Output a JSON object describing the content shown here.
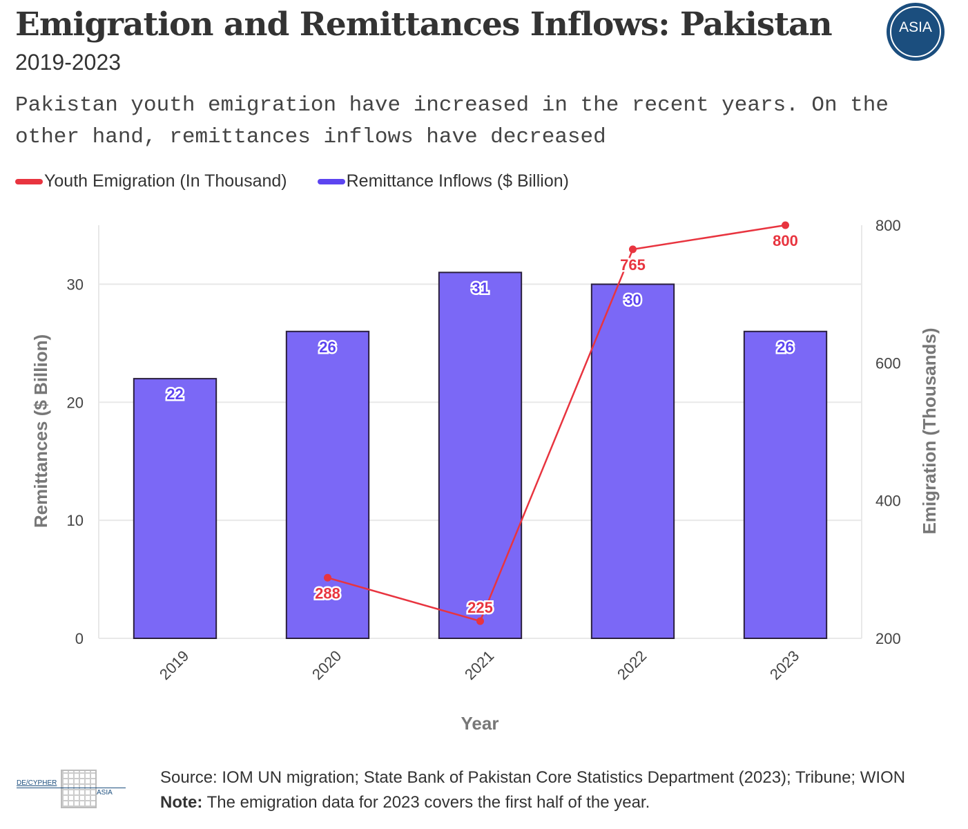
{
  "header": {
    "title": "Emigration and Remittances Inflows: Pakistan",
    "subtitle": "2019-2023",
    "description": "Pakistan youth emigration have increased in the recent years. On the other hand, remittances inflows have decreased",
    "logo_text": "ASIA"
  },
  "legend": {
    "items": [
      {
        "label": "Youth Emigration (In Thousand)",
        "color": "#e8343f"
      },
      {
        "label": "Remittance Inflows ($ Billion)",
        "color": "#5c44f0"
      }
    ]
  },
  "chart_data": {
    "type": "bar+line",
    "categories": [
      "2019",
      "2020",
      "2021",
      "2022",
      "2023"
    ],
    "series": [
      {
        "name": "Remittance Inflows ($ Billion)",
        "type": "bar",
        "axis": "left",
        "color": "#7b68f6",
        "values": [
          22,
          26,
          31,
          30,
          26
        ],
        "labels": [
          "22",
          "26",
          "31",
          "30",
          "26"
        ]
      },
      {
        "name": "Youth Emigration (In Thousand)",
        "type": "line",
        "axis": "right",
        "color": "#e8343f",
        "values": [
          null,
          288,
          225,
          765,
          800
        ],
        "labels": [
          "",
          "288",
          "225",
          "765",
          "800"
        ]
      }
    ],
    "xlabel": "Year",
    "ylabel_left": "Remittances ($ Billion)",
    "ylabel_right": "Emigration (Thousands)",
    "ylim_left": [
      0,
      35
    ],
    "yticks_left": [
      "0",
      "10",
      "20",
      "30"
    ],
    "ylim_right": [
      200,
      800
    ],
    "yticks_right": [
      "200",
      "400",
      "600",
      "800"
    ],
    "grid": true
  },
  "footer": {
    "logo_left": "DE/CYPHER",
    "logo_right": "ASIA",
    "source": "Source: IOM UN migration; State Bank of Pakistan Core Statistics Department (2023); Tribune; WION",
    "note_label": "Note:",
    "note_text": " The emigration data for 2023 covers the first half of the year."
  }
}
